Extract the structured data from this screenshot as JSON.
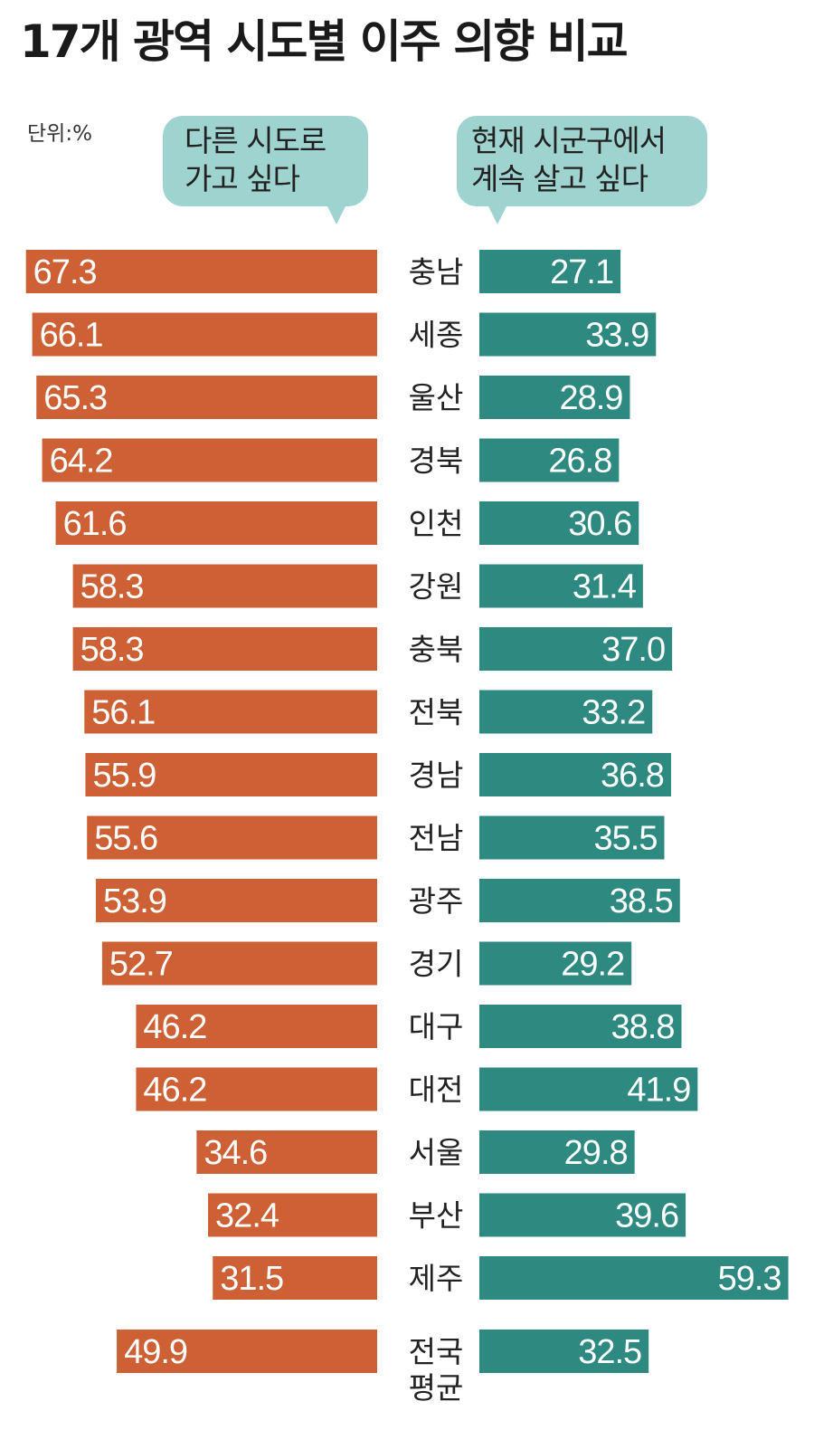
{
  "title": "17개 광역 시도별 이주 의향 비교",
  "unit_label": "단위:%",
  "legend": {
    "left_lines": [
      "다른 시도로",
      "가고 싶다"
    ],
    "right_lines": [
      "현재 시군구에서",
      "계속 살고 싶다"
    ]
  },
  "colors": {
    "left_bar": "#cd6135",
    "right_bar": "#2e8a80",
    "bubble": "#9fd3cf",
    "label_text": "#ffffff"
  },
  "chart_data": {
    "type": "bar",
    "title": "17개 광역 시도별 이주 의향 비교",
    "unit": "%",
    "categories": [
      "충남",
      "세종",
      "울산",
      "경북",
      "인천",
      "강원",
      "충북",
      "전북",
      "경남",
      "전남",
      "광주",
      "경기",
      "대구",
      "대전",
      "서울",
      "부산",
      "제주",
      "전국 평균"
    ],
    "series": [
      {
        "name": "다른 시도로 가고 싶다",
        "values": [
          67.3,
          66.1,
          65.3,
          64.2,
          61.6,
          58.3,
          58.3,
          56.1,
          55.9,
          55.6,
          53.9,
          52.7,
          46.2,
          46.2,
          34.6,
          32.4,
          31.5,
          49.9
        ]
      },
      {
        "name": "현재 시군구에서 계속 살고 싶다",
        "values": [
          27.1,
          33.9,
          28.9,
          26.8,
          30.6,
          31.4,
          37.0,
          33.2,
          36.8,
          35.5,
          38.5,
          29.2,
          38.8,
          41.9,
          29.8,
          39.6,
          59.3,
          32.5
        ]
      }
    ],
    "display_labels": [
      [
        "67.3",
        "27.1"
      ],
      [
        "66.1",
        "33.9"
      ],
      [
        "65.3",
        "28.9"
      ],
      [
        "64.2",
        "26.8"
      ],
      [
        "61.6",
        "30.6"
      ],
      [
        "58.3",
        "31.4"
      ],
      [
        "58.3",
        "37.0"
      ],
      [
        "56.1",
        "33.2"
      ],
      [
        "55.9",
        "36.8"
      ],
      [
        "55.6",
        "35.5"
      ],
      [
        "53.9",
        "38.5"
      ],
      [
        "52.7",
        "29.2"
      ],
      [
        "46.2",
        "38.8"
      ],
      [
        "46.2",
        "41.9"
      ],
      [
        "34.6",
        "29.8"
      ],
      [
        "32.4",
        "39.6"
      ],
      [
        "31.5",
        "59.3"
      ],
      [
        "49.9",
        "32.5"
      ]
    ]
  }
}
